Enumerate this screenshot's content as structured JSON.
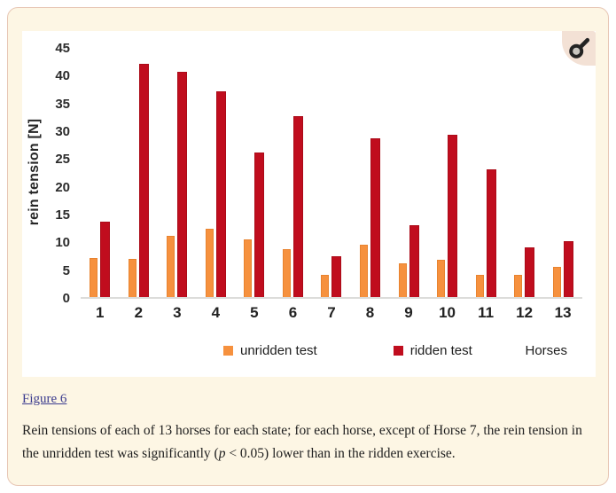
{
  "icons": {
    "zoom": "magnifier-icon"
  },
  "caption": {
    "link_label": "Figure 6",
    "body_pre": "Rein tensions of each of 13 horses for each state; for each horse, except of Horse 7, the rein tension in the unridden test was significantly (",
    "p_var": "p",
    "body_post": " < 0.05) lower than in the ridden exercise."
  },
  "colors": {
    "page_bg": "#ffffff",
    "panel_bg": "#fdf6e4",
    "panel_border": "#e7c6b4",
    "figure_bg": "#ffffff",
    "link": "#3b3b8e",
    "unridden_bar": "#f6913e",
    "ridden_bar": "#c00d1e"
  },
  "chart_data": {
    "type": "bar",
    "title": "",
    "categories": [
      "1",
      "2",
      "3",
      "4",
      "5",
      "6",
      "7",
      "8",
      "9",
      "10",
      "11",
      "12",
      "13"
    ],
    "series": [
      {
        "name": "unridden test",
        "color": "#f6913e",
        "values": [
          7.0,
          6.8,
          11.0,
          12.3,
          10.4,
          8.6,
          4.0,
          9.5,
          6.0,
          6.7,
          4.0,
          4.0,
          5.5
        ]
      },
      {
        "name": "ridden test",
        "color": "#c00d1e",
        "values": [
          13.5,
          42.0,
          40.5,
          37.0,
          26.0,
          32.5,
          7.4,
          28.5,
          13.0,
          29.2,
          23.0,
          9.0,
          10.0
        ]
      }
    ],
    "xlabel": "Horses",
    "ylabel": "rein tension [N]",
    "ylim": [
      0,
      45
    ],
    "ytick_step": 5,
    "grid": false,
    "legend_position": "bottom"
  }
}
